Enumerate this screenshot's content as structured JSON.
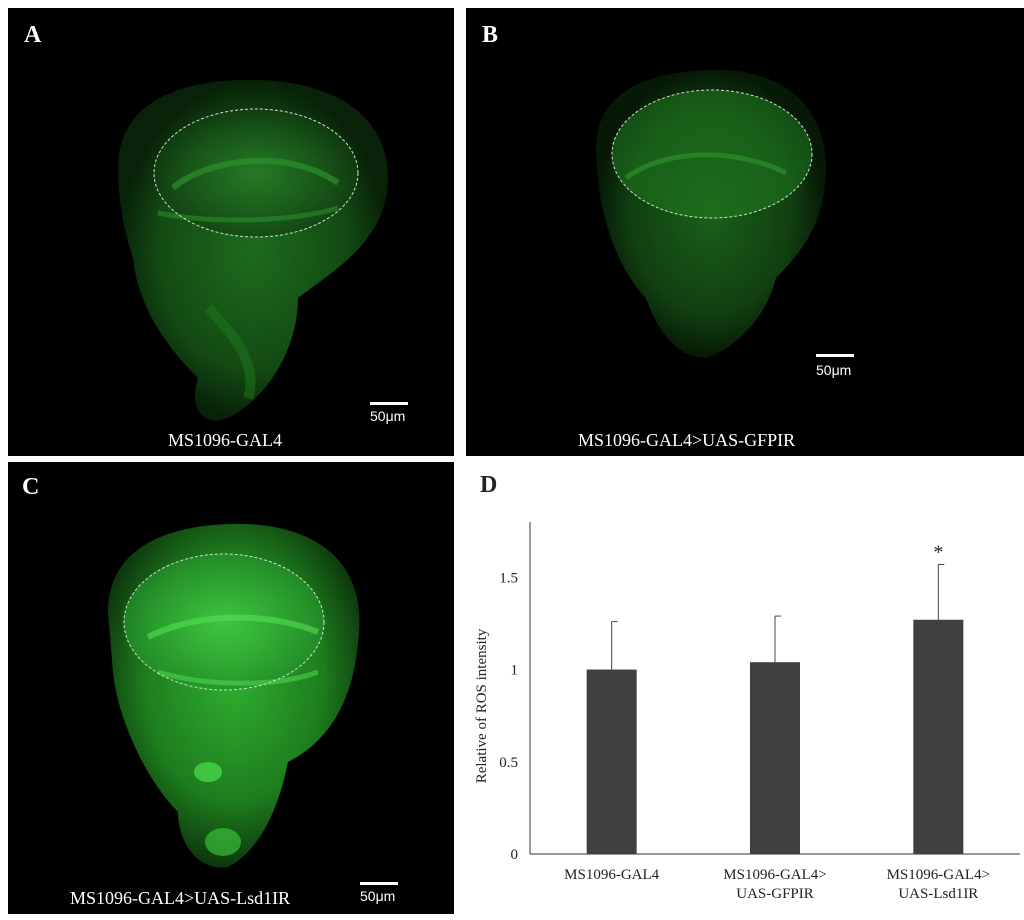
{
  "panels": [
    {
      "letter": "A",
      "caption": "MS1096-GAL4",
      "scale": "50μm"
    },
    {
      "letter": "B",
      "caption": "MS1096-GAL4>UAS-GFPIR",
      "scale": "50μm"
    },
    {
      "letter": "C",
      "caption": "MS1096-GAL4>UAS-Lsd1IR",
      "scale": "50μm"
    }
  ],
  "colors": {
    "fluorescence": "#33d633",
    "bar": "#404040",
    "outline": "#c8e6c8"
  },
  "chart_data": {
    "panel_letter": "D",
    "type": "bar",
    "categories": [
      [
        "MS1096-GAL4"
      ],
      [
        "MS1096-GAL4>",
        "UAS-GFPIR"
      ],
      [
        "MS1096-GAL4>",
        "UAS-Lsd1IR"
      ]
    ],
    "values": [
      1.0,
      1.04,
      1.27
    ],
    "errors": [
      0.26,
      0.25,
      0.3
    ],
    "significance": [
      "",
      "",
      "*"
    ],
    "ylabel": "Relative of ROS intensity",
    "ylim": [
      0,
      1.8
    ],
    "yticks": [
      0,
      0.5,
      1,
      1.5
    ],
    "ytick_labels": [
      "0",
      "0.5",
      "1",
      "1.5"
    ],
    "grid": false
  }
}
